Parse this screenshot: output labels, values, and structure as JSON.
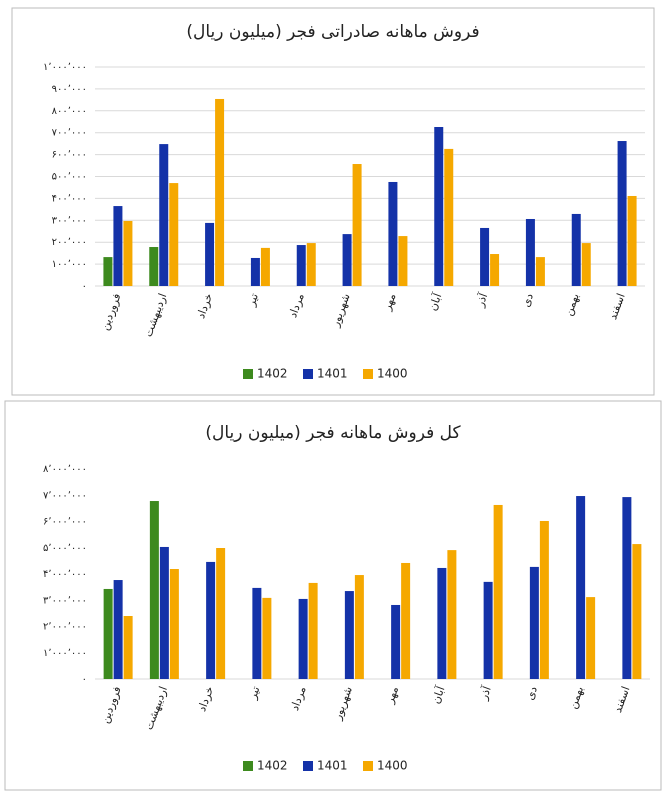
{
  "chart_data": [
    {
      "type": "bar",
      "title": "فروش ماهانه صادراتی فجر (میلیون ریال)",
      "categories": [
        "فروردین",
        "اردیبهشت",
        "خرداد",
        "تیر",
        "مرداد",
        "شهریور",
        "مهر",
        "آبان",
        "آذر",
        "دی",
        "بهمن",
        "اسفند"
      ],
      "series": [
        {
          "name": "1402",
          "color": "#3d8a1e",
          "values": [
            132000,
            178000,
            null,
            null,
            null,
            null,
            null,
            null,
            null,
            null,
            null,
            null
          ]
        },
        {
          "name": "1401",
          "color": "#1432a8",
          "values": [
            365000,
            648000,
            288000,
            128000,
            187000,
            237000,
            475000,
            726000,
            265000,
            306000,
            329000,
            662000
          ]
        },
        {
          "name": "1400",
          "color": "#f5a800",
          "values": [
            297000,
            470000,
            854000,
            174000,
            196000,
            557000,
            228000,
            626000,
            146000,
            132000,
            196000,
            411000
          ]
        }
      ],
      "ylim": [
        0,
        1000000
      ],
      "yticks": [
        {
          "value": 0,
          "label": "۰"
        },
        {
          "value": 100000,
          "label": "۱۰۰٬۰۰۰"
        },
        {
          "value": 200000,
          "label": "۲۰۰٬۰۰۰"
        },
        {
          "value": 300000,
          "label": "۳۰۰٬۰۰۰"
        },
        {
          "value": 400000,
          "label": "۴۰۰٬۰۰۰"
        },
        {
          "value": 500000,
          "label": "۵۰۰٬۰۰۰"
        },
        {
          "value": 600000,
          "label": "۶۰۰٬۰۰۰"
        },
        {
          "value": 700000,
          "label": "۷۰۰٬۰۰۰"
        },
        {
          "value": 800000,
          "label": "۸۰۰٬۰۰۰"
        },
        {
          "value": 900000,
          "label": "۹۰۰٬۰۰۰"
        },
        {
          "value": 1000000,
          "label": "۱٬۰۰۰٬۰۰۰"
        }
      ],
      "grid": true,
      "legend": "bottom"
    },
    {
      "type": "bar",
      "title": "کل فروش ماهانه فجر (میلیون ریال)",
      "categories": [
        "فروردین",
        "اردیبهشت",
        "خرداد",
        "تیر",
        "مرداد",
        "شهریور",
        "مهر",
        "آبان",
        "آذر",
        "دی",
        "بهمن",
        "اسفند"
      ],
      "series": [
        {
          "name": "1402",
          "color": "#3d8a1e",
          "values": [
            3430000,
            6780000,
            null,
            null,
            null,
            null,
            null,
            null,
            null,
            null,
            null,
            null
          ]
        },
        {
          "name": "1401",
          "color": "#1432a8",
          "values": [
            3770000,
            5030000,
            4460000,
            3470000,
            3050000,
            3350000,
            2820000,
            4230000,
            3700000,
            4270000,
            6970000,
            6930000
          ]
        },
        {
          "name": "1400",
          "color": "#f5a800",
          "values": [
            2400000,
            4190000,
            4990000,
            3090000,
            3660000,
            3960000,
            4420000,
            4910000,
            6630000,
            6020000,
            3120000,
            5140000
          ]
        }
      ],
      "ylim": [
        0,
        8000000
      ],
      "yticks": [
        {
          "value": 0,
          "label": "۰"
        },
        {
          "value": 1000000,
          "label": "۱٬۰۰۰٬۰۰۰"
        },
        {
          "value": 2000000,
          "label": "۲٬۰۰۰٬۰۰۰"
        },
        {
          "value": 3000000,
          "label": "۳٬۰۰۰٬۰۰۰"
        },
        {
          "value": 4000000,
          "label": "۴٬۰۰۰٬۰۰۰"
        },
        {
          "value": 5000000,
          "label": "۵٬۰۰۰٬۰۰۰"
        },
        {
          "value": 6000000,
          "label": "۶٬۰۰۰٬۰۰۰"
        },
        {
          "value": 7000000,
          "label": "۷٬۰۰۰٬۰۰۰"
        },
        {
          "value": 8000000,
          "label": "۸٬۰۰۰٬۰۰۰"
        }
      ],
      "grid": false,
      "legend": "bottom"
    }
  ]
}
